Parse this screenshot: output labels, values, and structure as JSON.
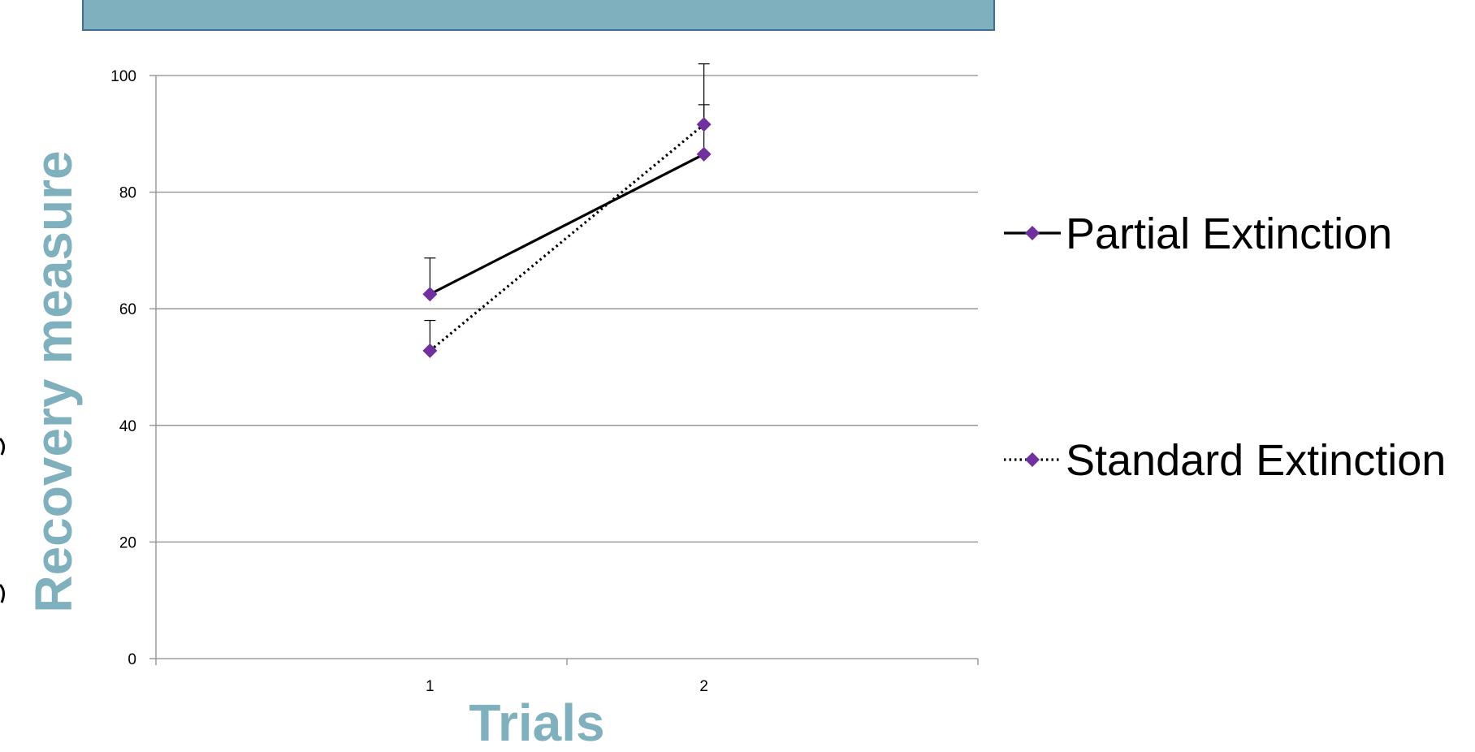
{
  "chart_data": {
    "type": "line",
    "title": "",
    "xlabel": "Trials",
    "ylabel": "Recovery measure",
    "categories": [
      "1",
      "2"
    ],
    "ylim": [
      0,
      100
    ],
    "yticks": [
      0,
      20,
      40,
      60,
      80,
      100
    ],
    "grid": true,
    "legend_position": "right",
    "series": [
      {
        "name": "Partial Extinction",
        "values": [
          62.5,
          86.5
        ],
        "error_plus": [
          6.2,
          15.5
        ],
        "line_style": "solid",
        "line_color": "#000000",
        "marker_color": "#7030a0"
      },
      {
        "name": "Standard Extinction",
        "values": [
          52.8,
          91.6
        ],
        "error_plus": [
          5.2,
          3.4
        ],
        "line_style": "dotted",
        "line_color": "#000000",
        "marker_color": "#7030a0"
      }
    ]
  },
  "colors": {
    "title_bar": "#7fb0bd",
    "title_bar_border": "#3f6e9a",
    "axis_title": "#7fb0bd",
    "gridline": "#8c8c8c",
    "marker": "#7030a0"
  }
}
